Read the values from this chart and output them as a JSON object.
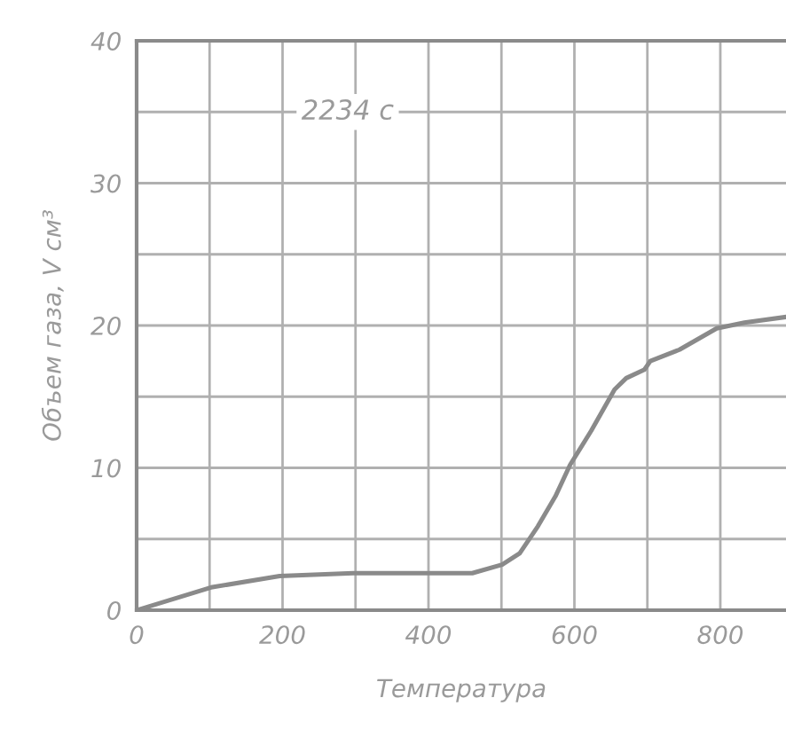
{
  "chart_data": {
    "type": "line",
    "xlabel": "Температура",
    "ylabel": "Объем газа, V см³",
    "annotations": [
      "2234 с"
    ],
    "x": [
      0,
      102,
      196,
      297,
      395,
      460,
      501,
      525,
      550,
      574,
      594,
      623,
      655,
      671,
      696,
      704,
      744,
      795,
      833,
      890
    ],
    "series": [
      {
        "color": "#8a8a8a",
        "values": [
          0,
          1.6,
          2.4,
          2.6,
          2.6,
          2.6,
          3.2,
          4.0,
          5.9,
          8.0,
          10.2,
          12.6,
          15.5,
          16.3,
          16.9,
          17.5,
          18.3,
          19.8,
          20.2,
          20.6
        ]
      }
    ],
    "xlim": [
      0,
      890
    ],
    "ylim": [
      0,
      40
    ],
    "xticks": [
      0,
      {
        "value": 100,
        "label": null
      },
      200,
      {
        "value": 300,
        "label": null
      },
      400,
      {
        "value": 500,
        "label": null
      },
      600,
      {
        "value": 700,
        "label": null
      },
      800
    ],
    "yticks": [
      0,
      {
        "value": 5,
        "label": null
      },
      10,
      {
        "value": 15,
        "label": null
      },
      20,
      {
        "value": 25,
        "label": null
      },
      30,
      {
        "value": 35,
        "label": null
      },
      40
    ],
    "grid": true,
    "marker": "none",
    "line_style": "solid"
  }
}
